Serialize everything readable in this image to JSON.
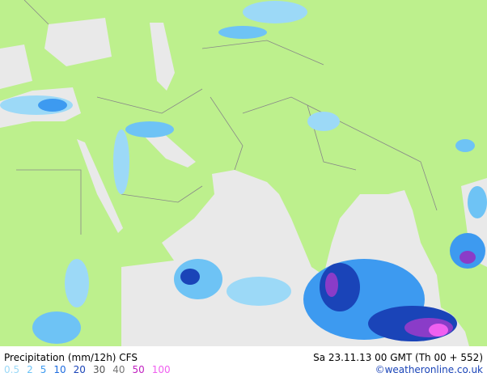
{
  "title": "Precipitation (mm/12h) CFS",
  "date": "Sa 23.11.13 00 GMT (Th 00 + 552)",
  "credit": "©weatheronline.co.uk",
  "legend": [
    {
      "value": 0.5,
      "color": "#9cd9f7"
    },
    {
      "value": 2,
      "color": "#6ec3f5"
    },
    {
      "value": 5,
      "color": "#3d9af0"
    },
    {
      "value": 10,
      "color": "#1f6de0"
    },
    {
      "value": 20,
      "color": "#1a44b8"
    },
    {
      "value": 30,
      "color": "#555555"
    },
    {
      "value": 40,
      "color": "#777777"
    },
    {
      "value": 50,
      "color": "#c020c0"
    },
    {
      "value": 100,
      "color": "#f060f0"
    }
  ]
}
